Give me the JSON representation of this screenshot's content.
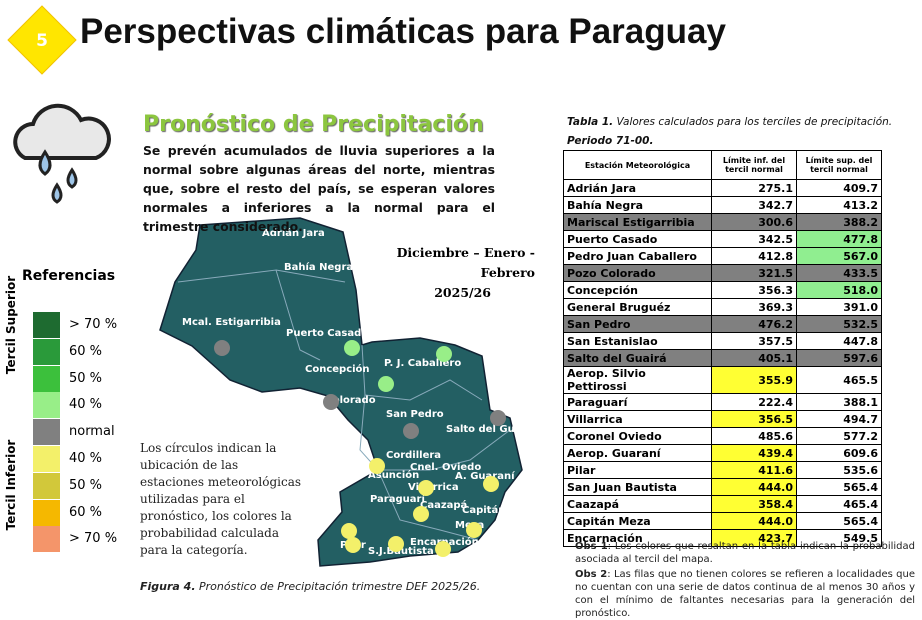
{
  "header": {
    "badge": "5",
    "title": "Perspectivas climáticas para Paraguay"
  },
  "section_title": "Pronóstico de Precipitación",
  "intro": "Se prevén acumulados de lluvia superiores a la normal sobre algunas áreas del norte, mientras que, sobre el resto del país, se esperan valores normales a inferiores a la normal para el trimestre considerado.",
  "legend": {
    "title": "Referencias",
    "upper_label": "Tercil Superior",
    "lower_label": "Tercil Inferior",
    "items": [
      {
        "label": "> 70 %",
        "color": "#1e6b30"
      },
      {
        "label": "60 %",
        "color": "#2a9a3a"
      },
      {
        "label": "50 %",
        "color": "#3cc03c"
      },
      {
        "label": "40 %",
        "color": "#98ee88"
      },
      {
        "label": "normal",
        "color": "#808080"
      },
      {
        "label": "40 %",
        "color": "#f3f06a"
      },
      {
        "label": "50 %",
        "color": "#d2c83a"
      },
      {
        "label": "60 %",
        "color": "#f5b800"
      },
      {
        "label": "> 70 %",
        "color": "#f4956a"
      }
    ]
  },
  "map": {
    "period": "Diciembre – Enero - Febrero",
    "year": "2025/26",
    "labels": [
      "Adrián Jara",
      "Bahía Negra",
      "Mcal. Estigarribia",
      "Puerto Casado",
      "P. J. Caballero",
      "Concepción",
      "Pozo Colorado",
      "San Pedro",
      "Salto del Guaí",
      "Cordillera",
      "Asunción",
      "Cnel. Oviedo",
      "Villarrica",
      "A. Guaraní",
      "Paraguarí",
      "Caazapá",
      "Capitán",
      "Meza",
      "Pilar",
      "S.J.Bautista",
      "Encarnación"
    ],
    "stations": [
      "#808080",
      "#98ee88",
      "#98ee88",
      "#98ee88",
      "#808080",
      "#808080",
      "#808080",
      "#f3f06a",
      "#f3f06a",
      "#f3f06a",
      "#f3f06a",
      "#f3f06a",
      "#f3f06a",
      "#f3f06a",
      "#f3f06a",
      "#f3f06a"
    ]
  },
  "note": "Los círculos indican la ubicación de las estaciones meteorológicas utilizadas para el pronóstico, los colores la probabilidad calculada para la categoría.",
  "figure_caption": {
    "label": "Figura 4.",
    "text": " Pronóstico de Precipitación trimestre DEF 2025/26."
  },
  "table_caption": {
    "label": "Tabla 1.",
    "text": " Valores calculados para los terciles de precipitación.",
    "period": "Periodo 71-00."
  },
  "table": {
    "headers": [
      "Estación Meteorológica",
      "Límite inf. del tercil normal",
      "Límite sup. del tercil normal"
    ],
    "rows": [
      [
        "Adrián Jara",
        "275.1",
        "409.7"
      ],
      [
        "Bahía Negra",
        "342.7",
        "413.2"
      ],
      [
        "Mariscal Estigarribia",
        "300.6",
        "388.2"
      ],
      [
        "Puerto Casado",
        "342.5",
        "477.8"
      ],
      [
        "Pedro Juan Caballero",
        "412.8",
        "567.0"
      ],
      [
        "Pozo Colorado",
        "321.5",
        "433.5"
      ],
      [
        "Concepción",
        "356.3",
        "518.0"
      ],
      [
        "General Bruguéz",
        "369.3",
        "391.0"
      ],
      [
        "San Pedro",
        "476.2",
        "532.5"
      ],
      [
        "San Estanislao",
        "357.5",
        "447.8"
      ],
      [
        "Salto del Guairá",
        "405.1",
        "597.6"
      ],
      [
        "Aerop. Silvio Pettirossi",
        "355.9",
        "465.5"
      ],
      [
        "Paraguarí",
        "222.4",
        "388.1"
      ],
      [
        "Villarrica",
        "356.5",
        "494.7"
      ],
      [
        "Coronel Oviedo",
        "485.6",
        "577.2"
      ],
      [
        "Aerop. Guaraní",
        "439.4",
        "609.6"
      ],
      [
        "Pilar",
        "411.6",
        "535.6"
      ],
      [
        "San Juan Bautista",
        "444.0",
        "565.4"
      ],
      [
        "Caazapá",
        "358.4",
        "465.4"
      ],
      [
        "Capitán Meza",
        "444.0",
        "565.4"
      ],
      [
        "Encarnación",
        "423.7",
        "549.5"
      ]
    ],
    "colors": [
      [
        "#ffffff",
        "#ffffff",
        "#ffffff"
      ],
      [
        "#ffffff",
        "#ffffff",
        "#ffffff"
      ],
      [
        "#808080",
        "#808080",
        "#808080"
      ],
      [
        "#ffffff",
        "#ffffff",
        "#90ee90"
      ],
      [
        "#ffffff",
        "#ffffff",
        "#90ee90"
      ],
      [
        "#808080",
        "#808080",
        "#808080"
      ],
      [
        "#ffffff",
        "#ffffff",
        "#90ee90"
      ],
      [
        "#ffffff",
        "#ffffff",
        "#ffffff"
      ],
      [
        "#808080",
        "#808080",
        "#808080"
      ],
      [
        "#ffffff",
        "#ffffff",
        "#ffffff"
      ],
      [
        "#808080",
        "#808080",
        "#808080"
      ],
      [
        "#ffffff",
        "#ffff33",
        "#ffffff"
      ],
      [
        "#ffffff",
        "#ffffff",
        "#ffffff"
      ],
      [
        "#ffffff",
        "#ffff33",
        "#ffffff"
      ],
      [
        "#ffffff",
        "#ffffff",
        "#ffffff"
      ],
      [
        "#ffffff",
        "#ffff33",
        "#ffffff"
      ],
      [
        "#ffffff",
        "#ffff33",
        "#ffffff"
      ],
      [
        "#ffffff",
        "#ffff33",
        "#ffffff"
      ],
      [
        "#ffffff",
        "#ffff33",
        "#ffffff"
      ],
      [
        "#ffffff",
        "#ffff33",
        "#ffffff"
      ],
      [
        "#ffffff",
        "#ffff33",
        "#ffffff"
      ]
    ]
  },
  "obs": [
    {
      "label": "Obs 1",
      "text": ": Los colores que resaltan en la tabla indican la probabilidad asociada al tercil del mapa."
    },
    {
      "label": "Obs 2",
      "text": ": Las filas que no tienen colores se refieren a localidades que no cuentan con una serie de datos continua de al menos 30 años y con el mínimo de faltantes necesarias para la generación del pronóstico."
    }
  ]
}
